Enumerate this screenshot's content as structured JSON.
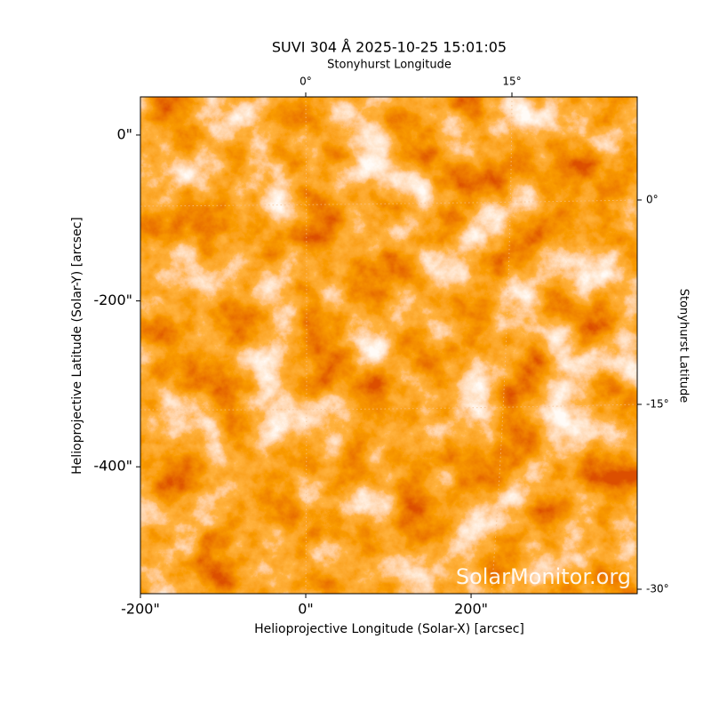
{
  "chart_data": {
    "type": "image",
    "title": "SUVI 304 Å 2025-10-25 15:01:05",
    "xlabel": "Helioprojective Longitude (Solar-X) [arcsec]",
    "ylabel": "Helioprojective Latitude (Solar-Y) [arcsec]",
    "top_label": "Stonyhurst Longitude",
    "right_label": "Stonyhurst Latitude",
    "watermark": "SolarMonitor.org",
    "xlim": [
      -200,
      401
    ],
    "ylim": [
      -553,
      46
    ],
    "xticks": [
      {
        "value": -200,
        "label": "-200\""
      },
      {
        "value": 0,
        "label": "0\""
      },
      {
        "value": 200,
        "label": "200\""
      }
    ],
    "yticks": [
      {
        "value": 0,
        "label": "0\""
      },
      {
        "value": -200,
        "label": "-200\""
      },
      {
        "value": -400,
        "label": "-400\""
      }
    ],
    "top_ticks": [
      "0°",
      "15°"
    ],
    "right_ticks": [
      "0°",
      "-15°",
      "-30°"
    ]
  }
}
